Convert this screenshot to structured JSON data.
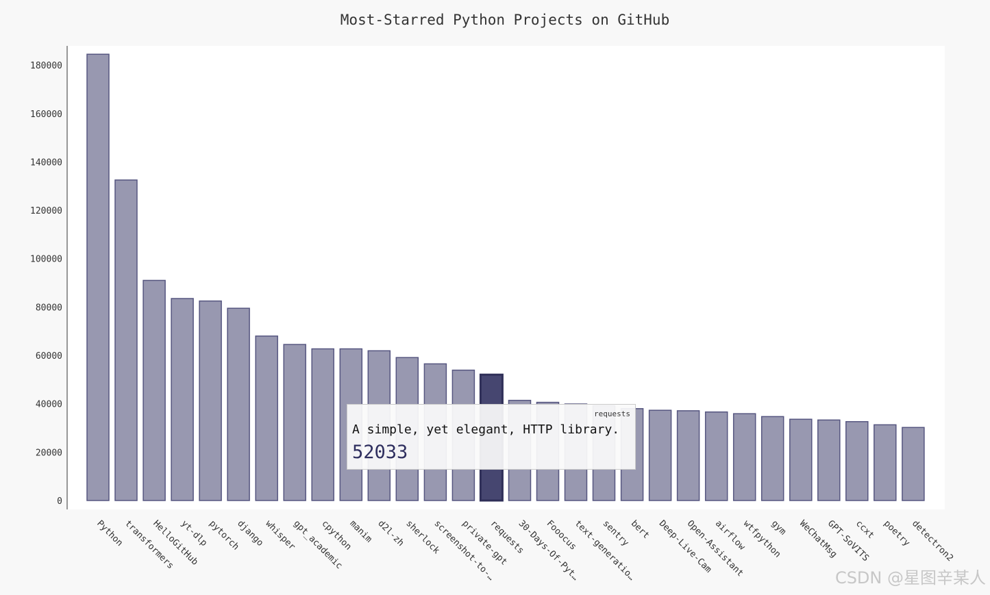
{
  "chart_data": {
    "type": "bar",
    "title": "Most-Starred Python Projects on GitHub",
    "xlabel": "",
    "ylabel": "",
    "ylim": [
      0,
      187000
    ],
    "yticks": [
      "0",
      "20000",
      "40000",
      "60000",
      "80000",
      "100000",
      "120000",
      "140000",
      "160000",
      "180000"
    ],
    "grid": false,
    "legend": "none",
    "categories": [
      "Python",
      "transformers",
      "HelloGitHub",
      "yt-dlp",
      "pytorch",
      "django",
      "whisper",
      "gpt_academic",
      "cpython",
      "manim",
      "d2l-zh",
      "sherlock",
      "screenshot-to-…",
      "private-gpt",
      "requests",
      "30-Days-Of-Pyt…",
      "Fooocus",
      "text-generatio…",
      "sentry",
      "bert",
      "Deep-Live-Cam",
      "Open-Assistant",
      "airflow",
      "wtfpython",
      "gym",
      "WeChatMsg",
      "GPT-SoVITS",
      "ccxt",
      "poetry",
      "detectron2"
    ],
    "values": [
      184500,
      132500,
      91000,
      83500,
      82500,
      79500,
      68000,
      64500,
      62700,
      62700,
      61900,
      59100,
      56500,
      53900,
      52033,
      41400,
      40600,
      39900,
      39200,
      38000,
      37300,
      37100,
      36600,
      35900,
      34700,
      33600,
      33300,
      32600,
      31300,
      30200
    ],
    "highlighted": "requests"
  },
  "tooltip": {
    "name": "requests",
    "description": "A simple, yet elegant, HTTP library.",
    "value": "52033"
  },
  "watermark": "CSDN @星图辛某人",
  "colors": {
    "bar_fill": "#9898b0",
    "bar_stroke": "#565680",
    "bar_active_fill": "#464670",
    "background": "#f8f8f8",
    "plot_background": "#ffffff"
  }
}
